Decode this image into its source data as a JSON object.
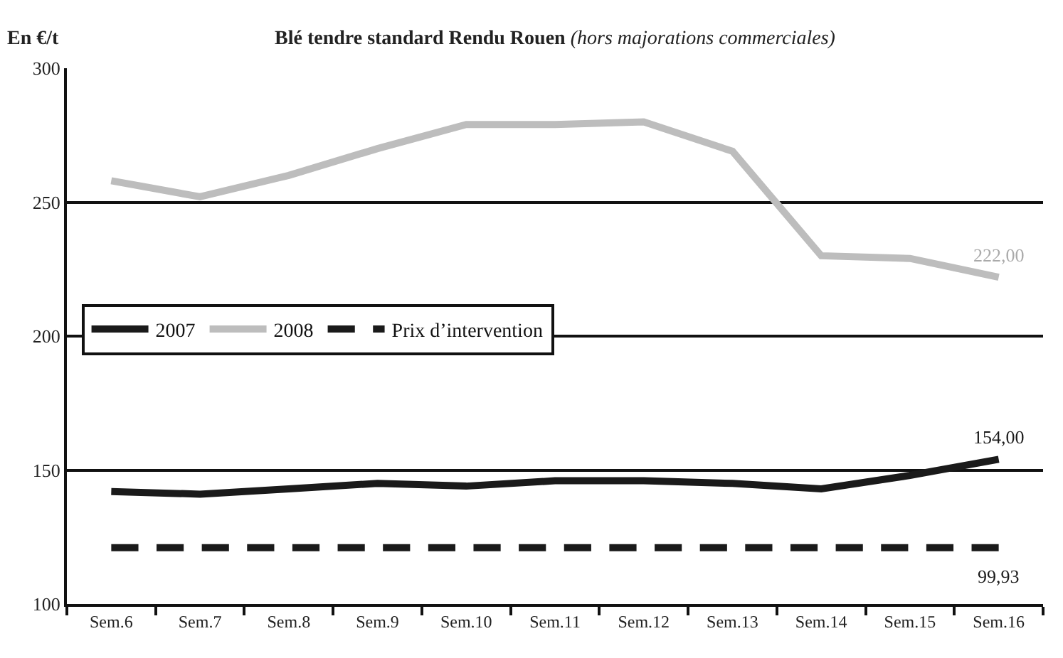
{
  "chart_data": {
    "type": "line",
    "title": "Blé tendre standard Rendu Rouen",
    "subtitle": "(hors majorations commerciales)",
    "ylabel": "En €/t",
    "categories": [
      "Sem.6",
      "Sem.7",
      "Sem.8",
      "Sem.9",
      "Sem.10",
      "Sem.11",
      "Sem.12",
      "Sem.13",
      "Sem.14",
      "Sem.15",
      "Sem.16"
    ],
    "series": [
      {
        "name": "2007",
        "color": "#1a1a1a",
        "values": [
          142,
          141,
          143,
          145,
          144,
          146,
          146,
          145,
          143,
          148,
          154
        ],
        "value_labels": [
          null,
          null,
          null,
          null,
          null,
          null,
          null,
          null,
          null,
          null,
          "154,00"
        ]
      },
      {
        "name": "2008",
        "color": "#bdbdbd",
        "values": [
          258,
          252,
          260,
          270,
          279,
          279,
          280,
          269,
          230,
          229,
          222
        ],
        "value_labels": [
          null,
          null,
          null,
          null,
          null,
          null,
          null,
          null,
          null,
          null,
          "222,00"
        ]
      },
      {
        "name": "Prix d’intervention",
        "color": "#1a1a1a",
        "line_style": "dashed",
        "values": [
          121,
          121,
          121,
          121,
          121,
          121,
          121,
          121,
          121,
          121,
          121
        ]
      }
    ],
    "annotations": [
      "99,93"
    ],
    "ylim": [
      100,
      300
    ],
    "yticks": [
      100,
      150,
      200,
      250,
      300
    ],
    "grid": "y",
    "legend": "left",
    "marker": "none"
  }
}
